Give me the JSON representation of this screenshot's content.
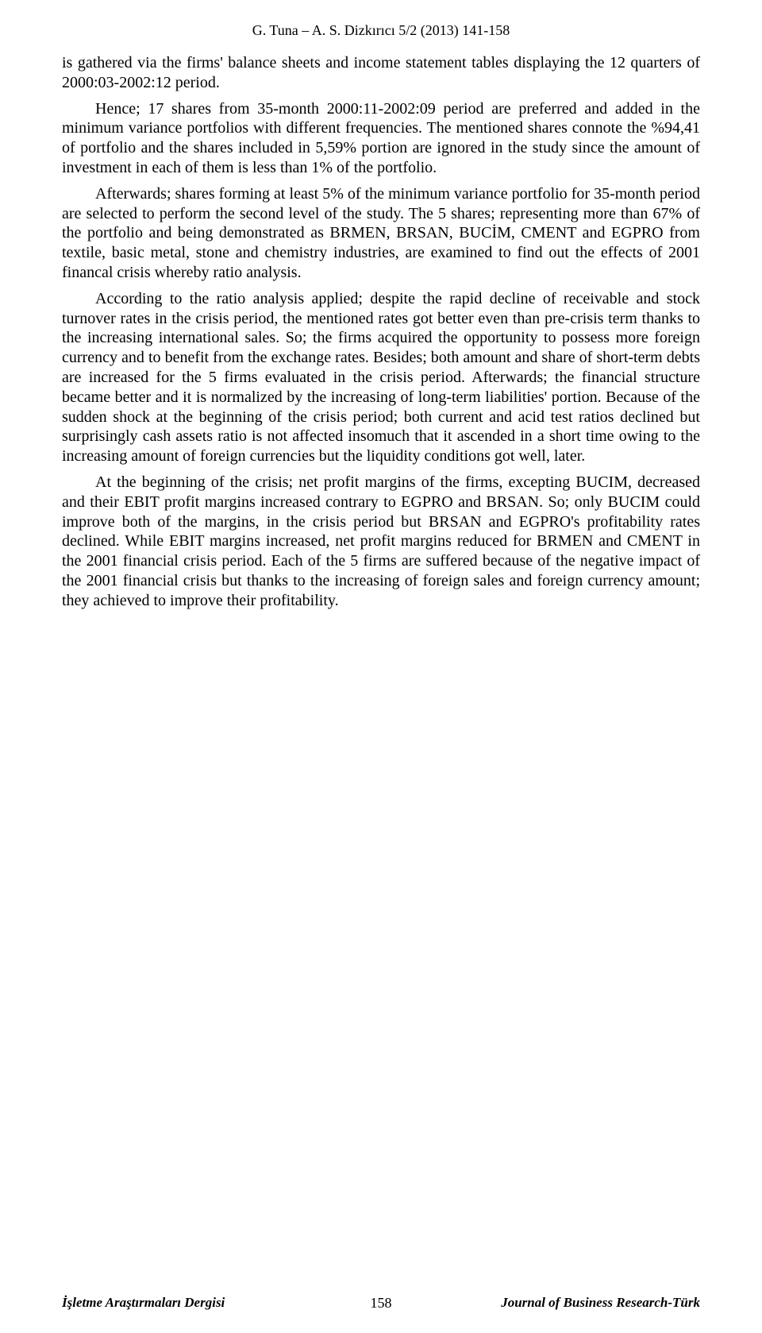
{
  "header": {
    "running_head": "G. Tuna – A. S. Dizkırıcı 5/2 (2013) 141-158"
  },
  "body": {
    "p1": "is gathered via the firms' balance sheets and income statement tables displaying the 12 quarters of 2000:03-2002:12 period.",
    "p2": "Hence; 17 shares from 35-month 2000:11-2002:09 period are preferred and added in the minimum variance portfolios with different frequencies. The mentioned shares connote the %94,41 of portfolio and the shares included in 5,59% portion are ignored in the study since the amount of investment in each of them is less than 1% of the portfolio.",
    "p3": "Afterwards; shares forming at least 5% of the minimum variance portfolio for 35-month period are selected to perform the second level of the study. The 5 shares; representing more than 67% of the portfolio and being demonstrated as BRMEN, BRSAN, BUCİM, CMENT and EGPRO from textile, basic metal, stone and chemistry industries, are examined to find out the effects of 2001 financal crisis whereby ratio analysis.",
    "p4": "According to the ratio analysis applied; despite the rapid decline of receivable and stock turnover rates in the crisis period, the mentioned rates got better even than pre-crisis term thanks to the increasing international sales. So; the firms acquired the opportunity to possess more foreign currency and to benefit from the exchange rates. Besides; both amount and share of short-term debts are increased for the 5 firms evaluated in the crisis period. Afterwards; the financial structure became better and it is normalized by the increasing of long-term liabilities' portion. Because of the sudden shock at the beginning of the crisis period; both current and acid test ratios declined but surprisingly cash assets ratio is not affected insomuch that it ascended in a short time owing to the increasing amount of foreign currencies but the liquidity conditions got well, later.",
    "p5": "At the beginning of the crisis; net profit margins of the firms, excepting BUCIM, decreased and their EBIT profit margins increased contrary to EGPRO and BRSAN. So; only BUCIM could improve both of the margins, in the crisis period but BRSAN and EGPRO's profitability rates declined. While EBIT margins increased, net profit margins reduced for BRMEN and CMENT in the 2001 financial crisis period. Each of the 5 firms are suffered because of the negative impact of the 2001 financial crisis but thanks to the increasing of foreign sales and foreign currency amount; they achieved to improve their profitability."
  },
  "footer": {
    "left": "İşletme Araştırmaları Dergisi",
    "page_number": "158",
    "right": "Journal of Business Research-Türk"
  }
}
